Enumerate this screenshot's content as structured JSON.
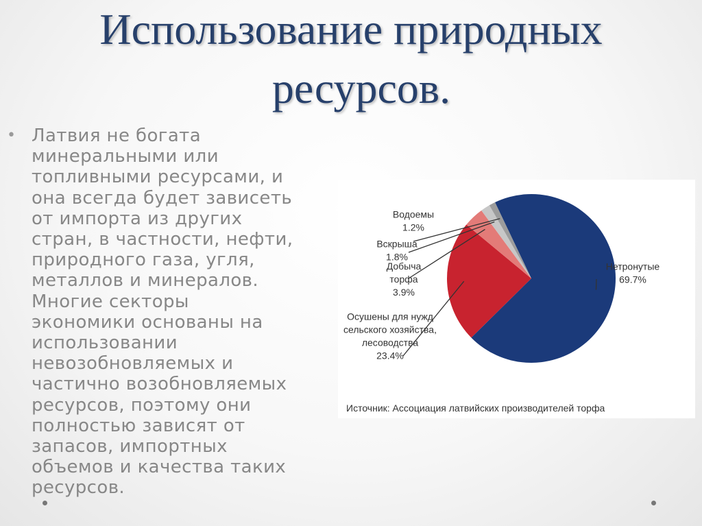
{
  "title": {
    "line1": "Использование природных",
    "line2": "ресурсов."
  },
  "body": {
    "bullet": "•",
    "lines": [
      "Латвия не богата",
      "минеральными или",
      "топливными ресурсами, и",
      "она всегда будет зависеть",
      "от импорта из других",
      "стран, в частности, нефти,",
      "природного газа, угля,",
      "металлов и минералов.",
      "Многие секторы",
      "экономики основаны на",
      "использовании",
      "невозобновляемых и",
      "частично возобновляемых",
      "ресурсов, поэтому они",
      "полностью зависят от",
      "запасов, импортных",
      "объемов и качества таких",
      "ресурсов."
    ]
  },
  "chart_data": {
    "type": "pie",
    "source": "Источник: Ассоциация латвийских производителей торфа",
    "slices": [
      {
        "name": "Нетронутые",
        "label_lines": [
          "Нетронутые",
          "69.7%"
        ],
        "value": 69.7,
        "color": "#1b3a7a"
      },
      {
        "name": "Осушены для нужд сельского хозяйства, лесоводства",
        "label_lines": [
          "Осушены для нужд",
          "сельского хозяйства,",
          "лесоводства",
          "23.4%"
        ],
        "value": 23.4,
        "color": "#c8232f"
      },
      {
        "name": "Добыча торфа",
        "label_lines": [
          "Добыча",
          "торфа",
          "3.9%"
        ],
        "value": 3.9,
        "color": "#e37b78"
      },
      {
        "name": "Вскрыша",
        "label_lines": [
          "Вскрыша",
          "1.8%"
        ],
        "value": 1.8,
        "color": "#c7c7c7"
      },
      {
        "name": "Водоемы",
        "label_lines": [
          "Водоемы",
          "1.2%"
        ],
        "value": 1.2,
        "color": "#9c9c9c"
      }
    ]
  }
}
